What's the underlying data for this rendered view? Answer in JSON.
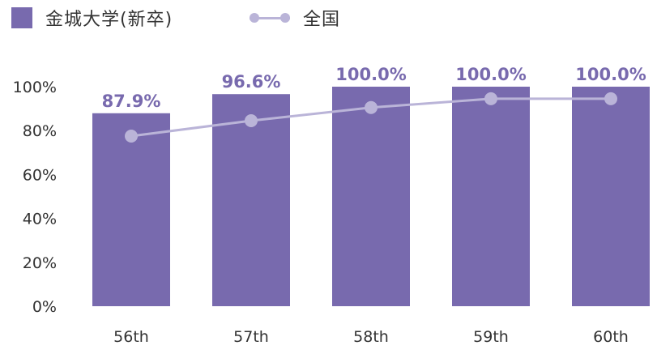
{
  "chart_data": {
    "type": "bar",
    "categories": [
      "56th",
      "57th",
      "58th",
      "59th",
      "60th"
    ],
    "series": [
      {
        "name": "金城大学(新卒)",
        "kind": "bar",
        "color": "#786aae",
        "values": [
          87.9,
          96.6,
          100.0,
          100.0,
          100.0
        ],
        "labels": [
          "87.9%",
          "96.6%",
          "100.0%",
          "100.0%",
          "100.0%"
        ]
      },
      {
        "name": "全国",
        "kind": "line",
        "color": "#bab4d8",
        "values": [
          77.5,
          84.5,
          90.5,
          94.5,
          94.5
        ]
      }
    ],
    "ylim": [
      0,
      100
    ],
    "yticks": [
      0,
      20,
      40,
      60,
      80,
      100
    ],
    "ytick_labels": [
      "0%",
      "20%",
      "40%",
      "60%",
      "80%",
      "100%"
    ],
    "grid": false,
    "legend_position": "top-left"
  }
}
